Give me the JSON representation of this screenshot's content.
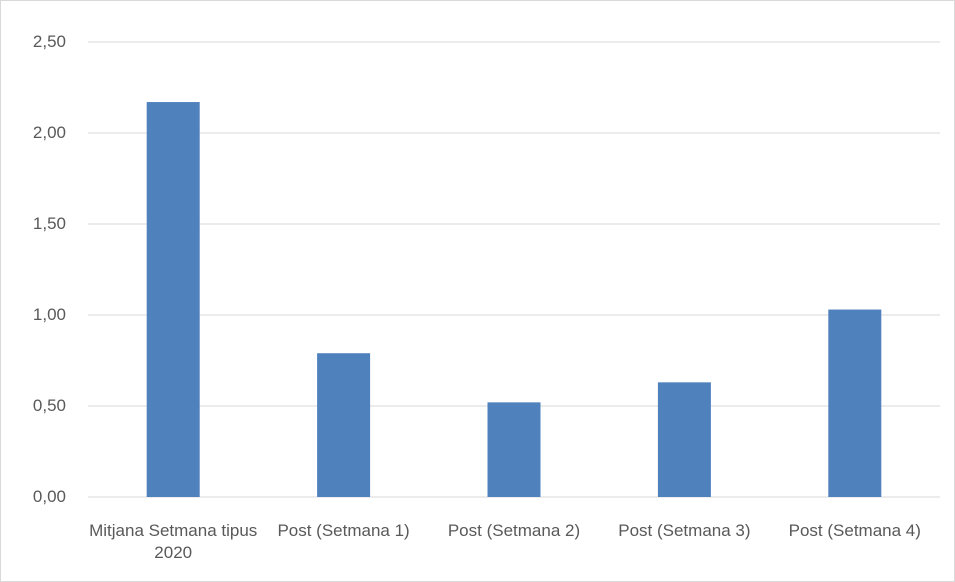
{
  "chart_data": {
    "type": "bar",
    "categories": [
      "Mitjana Setmana tipus 2020",
      "Post (Setmana 1)",
      "Post (Setmana 2)",
      "Post (Setmana 3)",
      "Post (Setmana 4)"
    ],
    "values": [
      2.17,
      0.79,
      0.52,
      0.63,
      1.03
    ],
    "color": "#4f81bd",
    "ylim": [
      0,
      2.5
    ],
    "yticks": [
      {
        "value": 0,
        "label": "0,00"
      },
      {
        "value": 0.5,
        "label": "0,50"
      },
      {
        "value": 1,
        "label": "1,00"
      },
      {
        "value": 1.5,
        "label": "1,50"
      },
      {
        "value": 2,
        "label": "2,00"
      },
      {
        "value": 2.5,
        "label": "2,50"
      }
    ],
    "grid": true
  }
}
